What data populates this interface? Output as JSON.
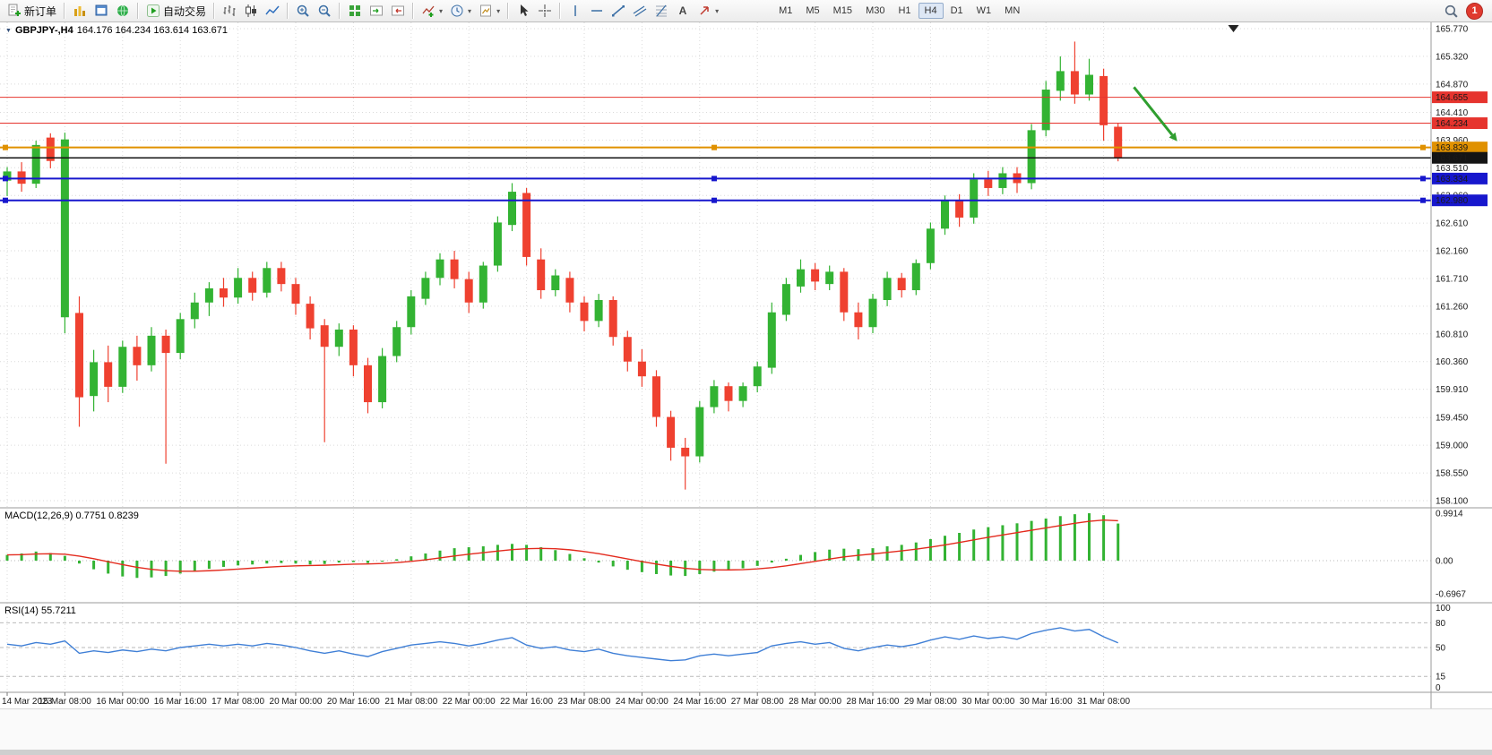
{
  "toolbar": {
    "new_order_label": "新订单",
    "autotrading_label": "自动交易",
    "timeframes": [
      "M1",
      "M5",
      "M15",
      "M30",
      "H1",
      "H4",
      "D1",
      "W1",
      "MN"
    ],
    "active_timeframe": "H4",
    "notification_count": "1"
  },
  "chart": {
    "symbol": "GBPJPY-,H4",
    "quotes": "164.176 164.234 163.614 163.671"
  },
  "indicators": {
    "macd_label": "MACD(12,26,9) 0.7751 0.8239",
    "rsi_label": "RSI(14) 55.7211"
  },
  "chart_data": {
    "type": "candlestick",
    "symbol": "GBPJPY",
    "timeframe": "H4",
    "ylim": [
      158.1,
      165.77
    ],
    "price_ticks": [
      "165.770",
      "165.320",
      "164.870",
      "164.410",
      "163.960",
      "163.510",
      "163.060",
      "162.610",
      "162.160",
      "161.710",
      "161.260",
      "160.810",
      "160.360",
      "159.910",
      "159.450",
      "159.000",
      "158.550",
      "158.100"
    ],
    "time_labels": [
      "14 Mar 2023",
      "15 Mar 08:00",
      "16 Mar 00:00",
      "16 Mar 16:00",
      "17 Mar 08:00",
      "20 Mar 00:00",
      "20 Mar 16:00",
      "21 Mar 08:00",
      "22 Mar 00:00",
      "22 Mar 16:00",
      "23 Mar 08:00",
      "24 Mar 00:00",
      "24 Mar 16:00",
      "27 Mar 08:00",
      "28 Mar 00:00",
      "28 Mar 16:00",
      "29 Mar 08:00",
      "30 Mar 00:00",
      "30 Mar 16:00",
      "31 Mar 08:00"
    ],
    "label_every_bars": 4,
    "candles": [
      [
        163.3,
        163.52,
        163.05,
        163.45
      ],
      [
        163.45,
        163.6,
        163.12,
        163.25
      ],
      [
        163.25,
        163.95,
        163.18,
        163.88
      ],
      [
        164.0,
        164.07,
        163.5,
        163.62
      ],
      [
        161.08,
        164.08,
        160.82,
        163.97
      ],
      [
        161.15,
        161.42,
        159.3,
        159.78
      ],
      [
        159.8,
        160.55,
        159.55,
        160.35
      ],
      [
        160.35,
        160.62,
        159.7,
        159.95
      ],
      [
        159.95,
        160.7,
        159.85,
        160.6
      ],
      [
        160.6,
        160.78,
        160.05,
        160.3
      ],
      [
        160.3,
        160.92,
        160.2,
        160.78
      ],
      [
        160.78,
        160.88,
        158.7,
        160.5
      ],
      [
        160.5,
        161.15,
        160.4,
        161.05
      ],
      [
        161.05,
        161.48,
        160.9,
        161.32
      ],
      [
        161.32,
        161.65,
        161.1,
        161.55
      ],
      [
        161.55,
        161.72,
        161.25,
        161.4
      ],
      [
        161.4,
        161.88,
        161.3,
        161.72
      ],
      [
        161.72,
        161.82,
        161.35,
        161.48
      ],
      [
        161.48,
        161.98,
        161.4,
        161.88
      ],
      [
        161.88,
        161.98,
        161.5,
        161.62
      ],
      [
        161.62,
        161.72,
        161.12,
        161.3
      ],
      [
        161.3,
        161.42,
        160.72,
        160.9
      ],
      [
        160.95,
        161.05,
        159.05,
        160.6
      ],
      [
        160.6,
        160.98,
        160.45,
        160.88
      ],
      [
        160.88,
        160.95,
        160.12,
        160.3
      ],
      [
        160.3,
        160.42,
        159.52,
        159.7
      ],
      [
        159.7,
        160.58,
        159.6,
        160.45
      ],
      [
        160.45,
        161.02,
        160.35,
        160.92
      ],
      [
        160.92,
        161.52,
        160.8,
        161.42
      ],
      [
        161.38,
        161.82,
        161.28,
        161.72
      ],
      [
        161.72,
        162.12,
        161.6,
        162.02
      ],
      [
        162.02,
        162.16,
        161.55,
        161.7
      ],
      [
        161.7,
        161.82,
        161.15,
        161.32
      ],
      [
        161.32,
        161.98,
        161.22,
        161.92
      ],
      [
        161.92,
        162.72,
        161.82,
        162.62
      ],
      [
        162.58,
        163.26,
        162.48,
        163.12
      ],
      [
        163.1,
        163.18,
        161.92,
        162.06
      ],
      [
        162.02,
        162.2,
        161.38,
        161.52
      ],
      [
        161.52,
        161.86,
        161.42,
        161.76
      ],
      [
        161.72,
        161.82,
        161.16,
        161.32
      ],
      [
        161.32,
        161.42,
        160.85,
        161.02
      ],
      [
        161.02,
        161.46,
        160.92,
        161.36
      ],
      [
        161.36,
        161.42,
        160.62,
        160.76
      ],
      [
        160.76,
        160.86,
        160.2,
        160.36
      ],
      [
        160.36,
        160.56,
        159.95,
        160.12
      ],
      [
        160.12,
        160.22,
        159.3,
        159.46
      ],
      [
        159.46,
        159.56,
        158.75,
        158.96
      ],
      [
        158.96,
        159.12,
        158.28,
        158.82
      ],
      [
        158.82,
        159.72,
        158.72,
        159.62
      ],
      [
        159.62,
        160.06,
        159.52,
        159.96
      ],
      [
        159.96,
        160.02,
        159.55,
        159.72
      ],
      [
        159.72,
        160.02,
        159.62,
        159.96
      ],
      [
        159.96,
        160.36,
        159.86,
        160.28
      ],
      [
        160.26,
        161.32,
        160.16,
        161.16
      ],
      [
        161.12,
        161.72,
        161.02,
        161.62
      ],
      [
        161.58,
        162.02,
        161.48,
        161.86
      ],
      [
        161.86,
        161.96,
        161.52,
        161.66
      ],
      [
        161.62,
        161.92,
        161.52,
        161.82
      ],
      [
        161.82,
        161.88,
        161.02,
        161.16
      ],
      [
        161.16,
        161.32,
        160.72,
        160.92
      ],
      [
        160.92,
        161.46,
        160.82,
        161.38
      ],
      [
        161.36,
        161.82,
        161.26,
        161.72
      ],
      [
        161.72,
        161.8,
        161.4,
        161.52
      ],
      [
        161.52,
        162.02,
        161.44,
        161.96
      ],
      [
        161.96,
        162.62,
        161.86,
        162.52
      ],
      [
        162.52,
        163.06,
        162.42,
        162.98
      ],
      [
        162.98,
        163.08,
        162.55,
        162.7
      ],
      [
        162.7,
        163.42,
        162.6,
        163.32
      ],
      [
        163.32,
        163.46,
        163.05,
        163.18
      ],
      [
        163.18,
        163.52,
        163.08,
        163.42
      ],
      [
        163.42,
        163.52,
        163.1,
        163.26
      ],
      [
        163.26,
        164.22,
        163.16,
        164.12
      ],
      [
        164.12,
        164.92,
        164.02,
        164.78
      ],
      [
        164.76,
        165.32,
        164.6,
        165.08
      ],
      [
        165.08,
        165.56,
        164.55,
        164.7
      ],
      [
        164.7,
        165.28,
        164.6,
        165.02
      ],
      [
        165.0,
        165.12,
        163.95,
        164.2
      ],
      [
        164.176,
        164.234,
        163.614,
        163.671
      ]
    ],
    "hlines": [
      {
        "level": 164.655,
        "label": "164.655",
        "color": "#e6342e",
        "width": 1,
        "handles": false,
        "tag_fg": "#ffffff"
      },
      {
        "level": 164.234,
        "label": "164.234",
        "color": "#e6342e",
        "width": 1,
        "handles": false,
        "tag_fg": "#ffffff"
      },
      {
        "level": 163.839,
        "label": "163.839",
        "color": "#e09100",
        "width": 2,
        "handles": true,
        "tag_fg": "#000000"
      },
      {
        "level": 163.671,
        "label": "163.671",
        "color": "#141414",
        "width": 1.5,
        "handles": false,
        "tag_fg": "#ffffff"
      },
      {
        "level": 163.334,
        "label": "163.334",
        "color": "#1717cd",
        "width": 2,
        "handles": true,
        "tag_fg": "#ffffff"
      },
      {
        "level": 162.98,
        "label": "162.980",
        "color": "#1717cd",
        "width": 2,
        "handles": true,
        "tag_fg": "#ffffff"
      }
    ],
    "macd": {
      "max_label": "0.9914",
      "zero_label": "0.00",
      "min_label": "-0.6967",
      "values": [
        0.12,
        0.15,
        0.19,
        0.16,
        0.1,
        -0.06,
        -0.18,
        -0.27,
        -0.33,
        -0.36,
        -0.35,
        -0.32,
        -0.27,
        -0.22,
        -0.17,
        -0.13,
        -0.1,
        -0.08,
        -0.06,
        -0.05,
        -0.06,
        -0.08,
        -0.07,
        -0.04,
        -0.03,
        -0.05,
        -0.02,
        0.03,
        0.09,
        0.15,
        0.21,
        0.26,
        0.28,
        0.3,
        0.33,
        0.35,
        0.33,
        0.28,
        0.22,
        0.14,
        0.05,
        -0.04,
        -0.12,
        -0.19,
        -0.24,
        -0.28,
        -0.31,
        -0.32,
        -0.28,
        -0.23,
        -0.2,
        -0.16,
        -0.11,
        -0.04,
        0.04,
        0.12,
        0.18,
        0.23,
        0.25,
        0.24,
        0.26,
        0.3,
        0.33,
        0.38,
        0.45,
        0.52,
        0.58,
        0.65,
        0.7,
        0.74,
        0.78,
        0.83,
        0.88,
        0.93,
        0.97,
        0.99,
        0.95,
        0.775
      ]
    },
    "rsi": {
      "axis_labels": [
        "100",
        "80",
        "50",
        "15",
        "0"
      ],
      "levels": [
        80,
        50,
        15
      ],
      "values": [
        54,
        52,
        56,
        54,
        58,
        43,
        46,
        44,
        47,
        45,
        48,
        46,
        50,
        52,
        54,
        52,
        54,
        52,
        55,
        53,
        50,
        46,
        43,
        46,
        42,
        39,
        45,
        49,
        53,
        55,
        57,
        55,
        52,
        55,
        59,
        62,
        53,
        49,
        51,
        47,
        45,
        48,
        43,
        40,
        38,
        36,
        34,
        35,
        40,
        42,
        40,
        42,
        44,
        52,
        55,
        57,
        54,
        56,
        49,
        46,
        50,
        53,
        51,
        54,
        59,
        63,
        60,
        64,
        61,
        63,
        60,
        67,
        71,
        74,
        70,
        72,
        63,
        55.72
      ]
    },
    "arrow": {
      "bar_start": 78.1,
      "price_start": 164.82,
      "bar_end": 81.1,
      "price_end": 163.94,
      "color": "#2f9e2f"
    },
    "shift_marker_bar": 85,
    "colors": {
      "bull": "#33b333",
      "bear": "#ef4130",
      "macd_hist": "#33b333",
      "macd_signal": "#e32b1e",
      "rsi_line": "#3f7fd6",
      "grid": "#dadada"
    }
  }
}
